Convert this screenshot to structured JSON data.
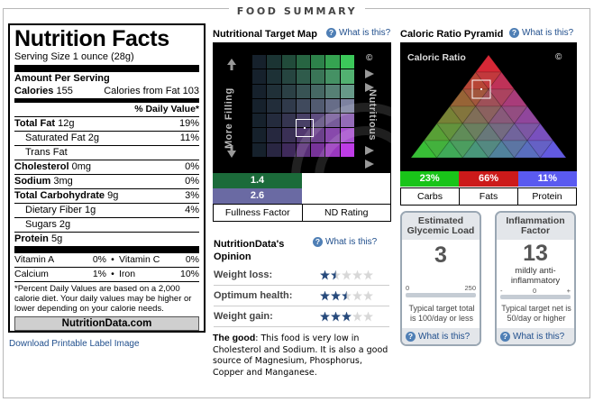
{
  "header": {
    "title": "FOOD SUMMARY"
  },
  "label": {
    "title": "Nutrition Facts",
    "serving": "Serving Size  1 ounce (28g)",
    "amount_per": "Amount Per Serving",
    "calories_label": "Calories",
    "calories_value": "155",
    "calories_fat": "Calories from Fat 103",
    "dv_header": "% Daily Value*",
    "rows": [
      {
        "name": "Total Fat",
        "amount": "12g",
        "dv": "19%"
      },
      {
        "name": "Saturated Fat",
        "amount": "2g",
        "dv": "11%"
      },
      {
        "name": "Trans Fat",
        "amount": "",
        "dv": ""
      },
      {
        "name": "Cholesterol",
        "amount": "0mg",
        "dv": "0%"
      },
      {
        "name": "Sodium",
        "amount": "3mg",
        "dv": "0%"
      },
      {
        "name": "Total Carbohydrate",
        "amount": "9g",
        "dv": "3%"
      },
      {
        "name": "Dietary Fiber",
        "amount": "1g",
        "dv": "4%"
      },
      {
        "name": "Sugars",
        "amount": "2g",
        "dv": ""
      },
      {
        "name": "Protein",
        "amount": "5g",
        "dv": ""
      }
    ],
    "vitamins": [
      {
        "a": "Vitamin A",
        "av": "0%",
        "b": "Vitamin C",
        "bv": "0%"
      },
      {
        "a": "Calcium",
        "av": "1%",
        "b": "Iron",
        "bv": "10%"
      }
    ],
    "bullet": "•",
    "footnote": "*Percent Daily Values are based on a 2,000 calorie diet. Your daily values may be higher or lower depending on your calorie needs.",
    "brand": "NutritionData.com",
    "download_link": "Download Printable Label Image"
  },
  "target_map": {
    "title": "Nutritional Target Map",
    "help": "What is this?",
    "left_axis": "More Filling",
    "right_axis": "Nutritious",
    "copyright": "©",
    "fullness_value": "1.4",
    "nd_value": "2.6",
    "fullness_label": "Fullness Factor",
    "nd_label": "ND Rating",
    "colors": {
      "fullness": "#1b6b3a",
      "nd": "#6a6aa3"
    }
  },
  "opinion": {
    "title": "NutritionData's Opinion",
    "help": "What is this?",
    "items": [
      {
        "label": "Weight loss:",
        "stars": 1.5
      },
      {
        "label": "Optimum health:",
        "stars": 2.5
      },
      {
        "label": "Weight gain:",
        "stars": 3
      }
    ],
    "good_label": "The good",
    "good_text": ": This food is very low in Cholesterol and Sodium. It is also a good source of Magnesium, Phosphorus, Copper and Manganese."
  },
  "pyramid": {
    "title": "Caloric Ratio Pyramid",
    "help": "What is this?",
    "inner_label": "Caloric Ratio",
    "copyright": "©",
    "segments": [
      {
        "pct": "23%",
        "label": "Carbs",
        "color": "#19c419"
      },
      {
        "pct": "66%",
        "label": "Fats",
        "color": "#cc1a1a"
      },
      {
        "pct": "11%",
        "label": "Protein",
        "color": "#5a5af0"
      }
    ]
  },
  "glycemic": {
    "title": "Estimated Glycemic Load",
    "value": "3",
    "scale_min": "0",
    "scale_max": "250",
    "note": "Typical target total is 100/day or less",
    "help": "What is this?"
  },
  "inflammation": {
    "title": "Inflammation Factor",
    "value": "13",
    "desc": "mildly anti-inflammatory",
    "scale_min": "-",
    "scale_mid": "0",
    "scale_max": "+",
    "note": "Typical target net is 50/day or higher",
    "help": "What is this?"
  }
}
